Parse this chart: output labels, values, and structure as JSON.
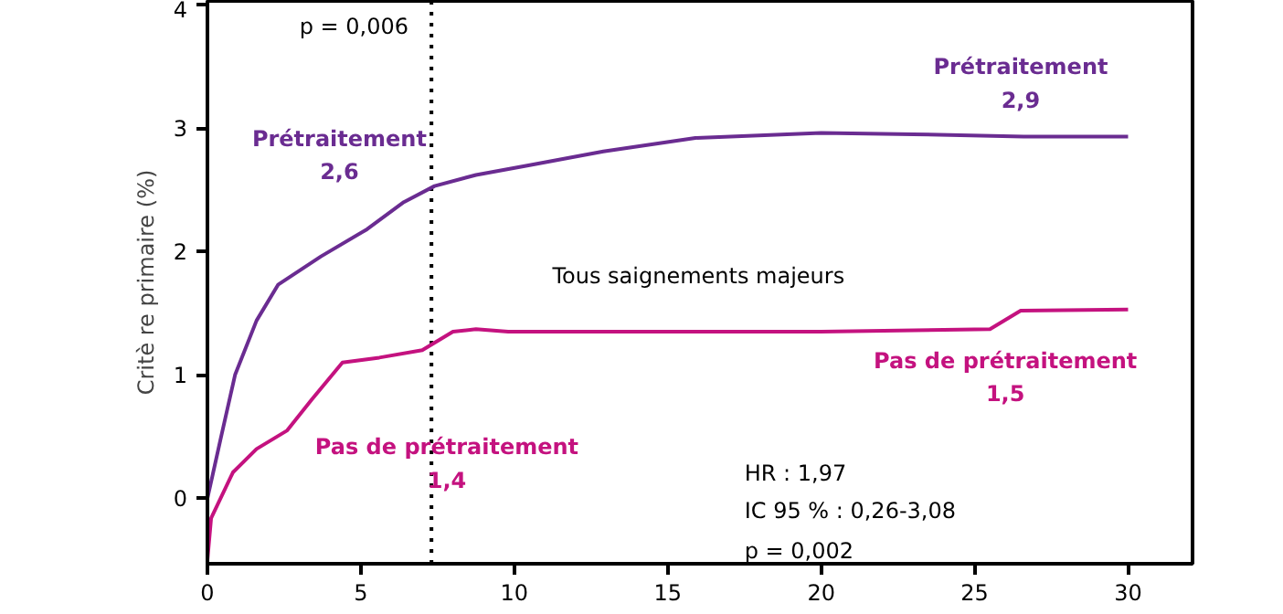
{
  "chart_data": {
    "type": "line",
    "ylabel": "Critè re primaire (%)",
    "x": [
      0,
      0.42,
      0.9,
      1.6,
      2.3,
      3.7,
      5.2,
      6.4,
      7.4,
      8.75,
      10.5,
      12.9,
      15.9,
      20,
      23,
      26.6,
      30
    ],
    "series": [
      {
        "color": "#6a2c91",
        "values": [
          0,
          0.47,
          1.0,
          1.44,
          1.73,
          1.96,
          2.18,
          2.4,
          2.53,
          2.62,
          2.7,
          2.81,
          2.92,
          2.96,
          2.95,
          2.93,
          2.93
        ]
      },
      {
        "color": "#c4127f",
        "x": [
          0,
          0.12,
          0.83,
          1.6,
          2.6,
          3.4,
          4.4,
          5.6,
          7.0,
          8.0,
          8.75,
          9.8,
          20,
          25.5,
          26.5,
          30
        ],
        "values": [
          -0.5,
          -0.16,
          0.21,
          0.4,
          0.55,
          0.8,
          1.1,
          1.14,
          1.2,
          1.35,
          1.37,
          1.35,
          1.35,
          1.37,
          1.52,
          1.53
        ]
      }
    ],
    "xlim": [
      0,
      32.1
    ],
    "ylim": [
      -0.53,
      4.03
    ],
    "xticks": [
      0,
      5,
      10,
      15,
      20,
      25,
      30
    ],
    "yticks": [
      0,
      1,
      2,
      3,
      4
    ],
    "grid": false,
    "line_style": "solid",
    "ref_lines": [
      {
        "axis": "x",
        "value": 7.3,
        "line_style": "dotted",
        "color": "#000000"
      }
    ],
    "annotations": [
      "Prétraitement\n2,6",
      "Prétraitement\n2,9",
      "Pas de prétraitement\n1,4",
      "Pas de prétraitement\n1,5",
      "p = 0,006",
      "Tous saignements majeurs",
      "HR : 1,97",
      "IC 95 % : 0,26-3,08",
      "p = 0,002"
    ]
  }
}
